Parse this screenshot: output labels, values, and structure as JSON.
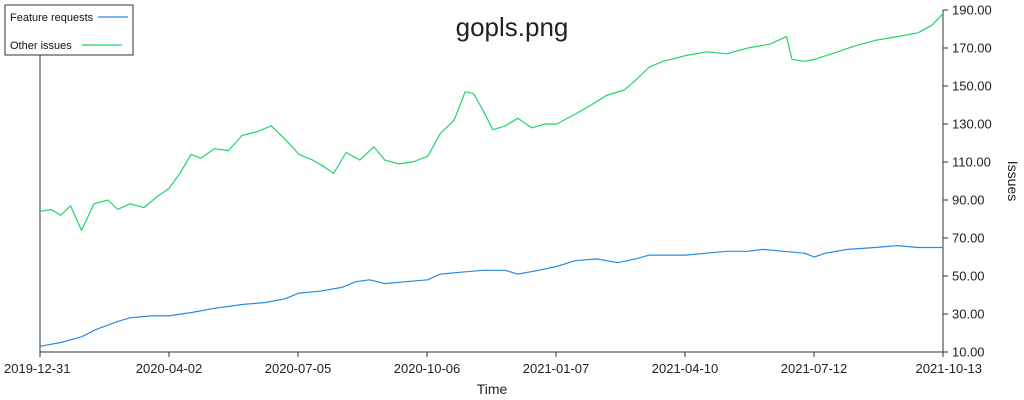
{
  "chart_data": {
    "type": "line",
    "title": "gopls.png",
    "xlabel": "Time",
    "ylabel": "Issues",
    "x_tick_labels": [
      "2019-12-31",
      "2020-04-02",
      "2020-07-05",
      "2020-10-06",
      "2021-01-07",
      "2021-04-10",
      "2021-07-12",
      "2021-10-13"
    ],
    "y_tick_labels": [
      "10.00",
      "30.00",
      "50.00",
      "70.00",
      "90.00",
      "110.00",
      "130.00",
      "150.00",
      "170.00",
      "190.00"
    ],
    "xlim": [
      "2019-12-31",
      "2021-10-13"
    ],
    "ylim": [
      10,
      190
    ],
    "y_axis_side": "right",
    "grid": false,
    "legend_position": "top-left",
    "series": [
      {
        "name": "Feature requests",
        "color": "#2b8ae0",
        "points": [
          [
            "2019-12-31",
            13
          ],
          [
            "2020-01-15",
            15
          ],
          [
            "2020-01-30",
            18
          ],
          [
            "2020-02-10",
            22
          ],
          [
            "2020-02-25",
            26
          ],
          [
            "2020-03-05",
            28
          ],
          [
            "2020-03-20",
            29
          ],
          [
            "2020-04-02",
            29
          ],
          [
            "2020-04-20",
            31
          ],
          [
            "2020-05-05",
            33
          ],
          [
            "2020-05-25",
            35
          ],
          [
            "2020-06-10",
            36
          ],
          [
            "2020-06-25",
            38
          ],
          [
            "2020-07-05",
            41
          ],
          [
            "2020-07-20",
            42
          ],
          [
            "2020-08-05",
            44
          ],
          [
            "2020-08-15",
            47
          ],
          [
            "2020-08-25",
            48
          ],
          [
            "2020-09-05",
            46
          ],
          [
            "2020-09-20",
            47
          ],
          [
            "2020-10-06",
            48
          ],
          [
            "2020-10-15",
            51
          ],
          [
            "2020-10-30",
            52
          ],
          [
            "2020-11-15",
            53
          ],
          [
            "2020-12-01",
            53
          ],
          [
            "2020-12-10",
            51
          ],
          [
            "2020-12-25",
            53
          ],
          [
            "2021-01-07",
            55
          ],
          [
            "2021-01-20",
            58
          ],
          [
            "2021-02-05",
            59
          ],
          [
            "2021-02-20",
            57
          ],
          [
            "2021-03-05",
            59
          ],
          [
            "2021-03-15",
            61
          ],
          [
            "2021-04-01",
            61
          ],
          [
            "2021-04-10",
            61
          ],
          [
            "2021-04-25",
            62
          ],
          [
            "2021-05-10",
            63
          ],
          [
            "2021-05-25",
            63
          ],
          [
            "2021-06-05",
            64
          ],
          [
            "2021-06-20",
            63
          ],
          [
            "2021-07-05",
            62
          ],
          [
            "2021-07-12",
            60
          ],
          [
            "2021-07-20",
            62
          ],
          [
            "2021-08-05",
            64
          ],
          [
            "2021-08-25",
            65
          ],
          [
            "2021-09-10",
            66
          ],
          [
            "2021-09-25",
            65
          ],
          [
            "2021-10-13",
            65
          ]
        ]
      },
      {
        "name": "Other issues",
        "color": "#21d36b",
        "points": [
          [
            "2019-12-31",
            84
          ],
          [
            "2020-01-08",
            85
          ],
          [
            "2020-01-15",
            82
          ],
          [
            "2020-01-22",
            87
          ],
          [
            "2020-01-30",
            74
          ],
          [
            "2020-02-08",
            88
          ],
          [
            "2020-02-18",
            90
          ],
          [
            "2020-02-25",
            85
          ],
          [
            "2020-03-05",
            88
          ],
          [
            "2020-03-15",
            86
          ],
          [
            "2020-03-25",
            92
          ],
          [
            "2020-04-02",
            96
          ],
          [
            "2020-04-10",
            104
          ],
          [
            "2020-04-18",
            114
          ],
          [
            "2020-04-25",
            112
          ],
          [
            "2020-05-05",
            117
          ],
          [
            "2020-05-15",
            116
          ],
          [
            "2020-05-25",
            124
          ],
          [
            "2020-06-05",
            126
          ],
          [
            "2020-06-15",
            129
          ],
          [
            "2020-06-25",
            122
          ],
          [
            "2020-07-05",
            114
          ],
          [
            "2020-07-15",
            111
          ],
          [
            "2020-07-22",
            108
          ],
          [
            "2020-07-30",
            104
          ],
          [
            "2020-08-08",
            115
          ],
          [
            "2020-08-18",
            111
          ],
          [
            "2020-08-28",
            118
          ],
          [
            "2020-09-05",
            111
          ],
          [
            "2020-09-15",
            109
          ],
          [
            "2020-09-25",
            110
          ],
          [
            "2020-10-06",
            113
          ],
          [
            "2020-10-15",
            125
          ],
          [
            "2020-10-25",
            132
          ],
          [
            "2020-11-02",
            147
          ],
          [
            "2020-11-08",
            146
          ],
          [
            "2020-11-15",
            137
          ],
          [
            "2020-11-22",
            127
          ],
          [
            "2020-12-01",
            129
          ],
          [
            "2020-12-10",
            133
          ],
          [
            "2020-12-20",
            128
          ],
          [
            "2020-12-30",
            130
          ],
          [
            "2021-01-07",
            130
          ],
          [
            "2021-01-20",
            135
          ],
          [
            "2021-02-01",
            140
          ],
          [
            "2021-02-12",
            145
          ],
          [
            "2021-02-25",
            148
          ],
          [
            "2021-03-05",
            153
          ],
          [
            "2021-03-15",
            160
          ],
          [
            "2021-03-25",
            163
          ],
          [
            "2021-04-05",
            165
          ],
          [
            "2021-04-10",
            166
          ],
          [
            "2021-04-25",
            168
          ],
          [
            "2021-05-10",
            167
          ],
          [
            "2021-05-25",
            170
          ],
          [
            "2021-06-10",
            172
          ],
          [
            "2021-06-22",
            176
          ],
          [
            "2021-06-26",
            164
          ],
          [
            "2021-07-05",
            163
          ],
          [
            "2021-07-12",
            164
          ],
          [
            "2021-07-25",
            167
          ],
          [
            "2021-08-10",
            171
          ],
          [
            "2021-08-25",
            174
          ],
          [
            "2021-09-10",
            176
          ],
          [
            "2021-09-25",
            178
          ],
          [
            "2021-10-05",
            182
          ],
          [
            "2021-10-13",
            188
          ]
        ]
      }
    ]
  }
}
